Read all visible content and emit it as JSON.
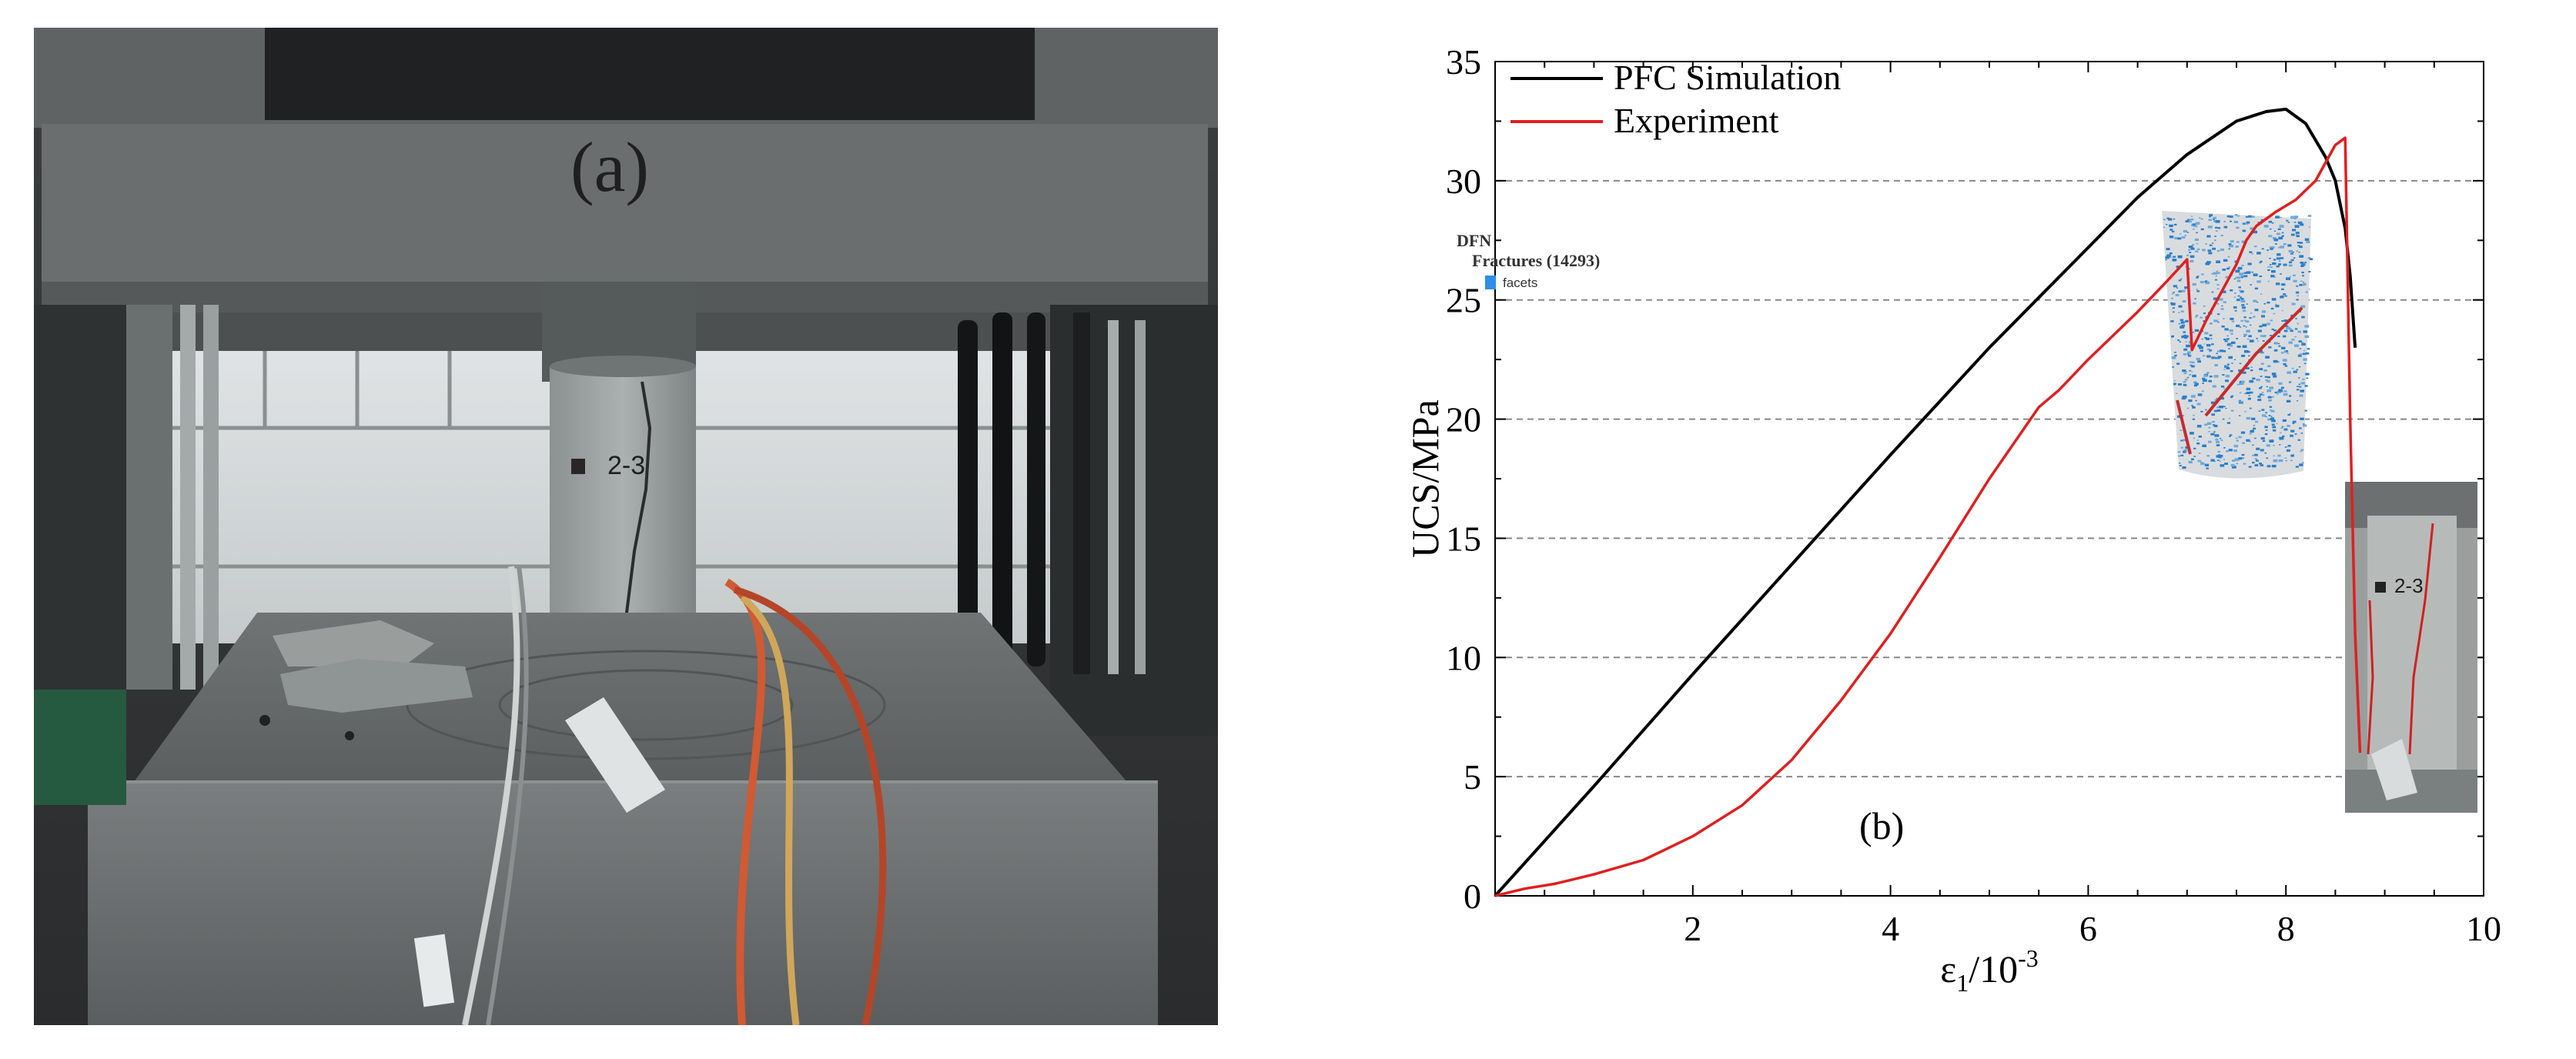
{
  "panel_a": {
    "label": "(a)",
    "specimen_tag": "2-3"
  },
  "panel_b": {
    "label": "(b)",
    "inset_dfn": {
      "title": "DFN",
      "subtitle": "Fractures (14293)",
      "legend_item": "facets",
      "legend_color": "#2f8ee8"
    },
    "inset_photo": {
      "specimen_tag": "2-3"
    }
  },
  "chart_data": {
    "type": "line",
    "xlabel": "ε1/10-3",
    "ylabel": "UCS/MPa",
    "xlim": [
      0,
      10
    ],
    "ylim": [
      0,
      35
    ],
    "x_ticks": [
      "2",
      "4",
      "6",
      "8",
      "10"
    ],
    "y_ticks": [
      "0",
      "5",
      "10",
      "15",
      "20",
      "25",
      "30",
      "35"
    ],
    "grid": "horizontal dashed",
    "legend_position": "top-left",
    "series": [
      {
        "name": "PFC Simulation",
        "color": "#000000",
        "x": [
          0,
          0.5,
          1.0,
          2.0,
          3.0,
          4.0,
          5.0,
          6.0,
          6.5,
          7.0,
          7.5,
          7.8,
          8.0,
          8.2,
          8.4,
          8.5,
          8.6,
          8.65,
          8.7
        ],
        "y": [
          0,
          2.3,
          4.6,
          9.3,
          13.9,
          18.5,
          23.0,
          27.2,
          29.3,
          31.1,
          32.5,
          32.9,
          33.0,
          32.4,
          31.0,
          30.0,
          28.0,
          26.0,
          23.0
        ]
      },
      {
        "name": "Experiment",
        "color": "#e01f1f",
        "x": [
          0,
          0.3,
          0.6,
          1.0,
          1.5,
          2.0,
          2.5,
          3.0,
          3.5,
          4.0,
          4.5,
          5.0,
          5.5,
          5.7,
          6.0,
          6.5,
          6.8,
          7.0,
          7.05,
          7.2,
          7.5,
          7.6,
          7.7,
          7.9,
          8.1,
          8.3,
          8.5,
          8.6,
          8.65,
          8.7,
          8.75
        ],
        "y": [
          0,
          0.3,
          0.5,
          0.9,
          1.5,
          2.5,
          3.8,
          5.7,
          8.2,
          11.0,
          14.2,
          17.5,
          20.5,
          21.2,
          22.5,
          24.5,
          25.8,
          26.7,
          22.9,
          24.2,
          26.5,
          27.5,
          28.1,
          28.7,
          29.2,
          30.0,
          31.5,
          31.8,
          20.0,
          11.0,
          6.0
        ]
      }
    ]
  }
}
